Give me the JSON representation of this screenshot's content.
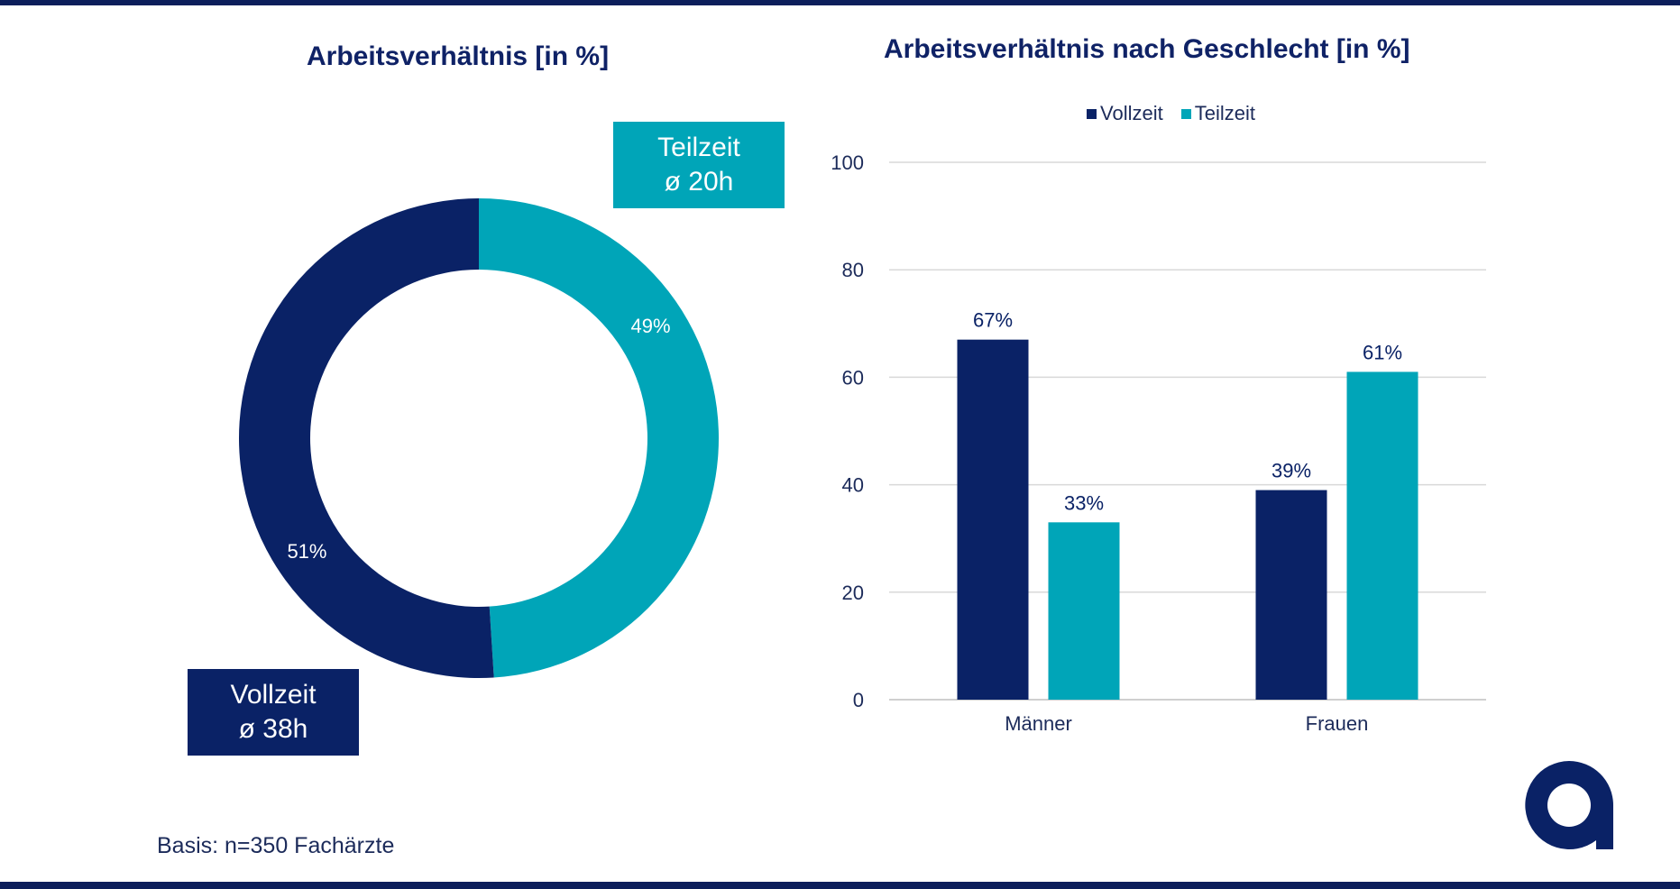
{
  "colors": {
    "navy": "#0a2266",
    "teal": "#00a5b8",
    "frame": "#0c1e5b",
    "grid": "#d9d9d9",
    "text": "#1c2b5a"
  },
  "donut": {
    "title": "Arbeitsverhältnis [in %]",
    "callout_teil": {
      "line1": "Teilzeit",
      "line2": "ø 20h"
    },
    "callout_voll": {
      "line1": "Vollzeit",
      "line2": "ø 38h"
    }
  },
  "bars": {
    "title": "Arbeitsverhältnis nach Geschlecht [in %]"
  },
  "legend": {
    "vollzeit": "Vollzeit",
    "teilzeit": "Teilzeit"
  },
  "footer": {
    "basis": "Basis: n=350 Fachärzte"
  },
  "logo": {
    "icon": "a-logo-icon"
  },
  "chart_data": [
    {
      "type": "pie",
      "title": "Arbeitsverhältnis [in %]",
      "labels": [
        "Teilzeit",
        "Vollzeit"
      ],
      "values": [
        49,
        51
      ],
      "data_labels": [
        "49%",
        "51%"
      ],
      "donut": true
    },
    {
      "type": "bar",
      "title": "Arbeitsverhältnis nach Geschlecht [in %]",
      "categories": [
        "Männer",
        "Frauen"
      ],
      "series": [
        {
          "name": "Vollzeit",
          "values": [
            67,
            39
          ],
          "labels": [
            "67%",
            "39%"
          ],
          "color": "#0a2266"
        },
        {
          "name": "Teilzeit",
          "values": [
            33,
            61
          ],
          "labels": [
            "33%",
            "61%"
          ],
          "color": "#00a5b8"
        }
      ],
      "ylim": [
        0,
        100
      ],
      "yticks": [
        0,
        20,
        40,
        60,
        80,
        100
      ],
      "grid": true,
      "legend": "top"
    }
  ]
}
